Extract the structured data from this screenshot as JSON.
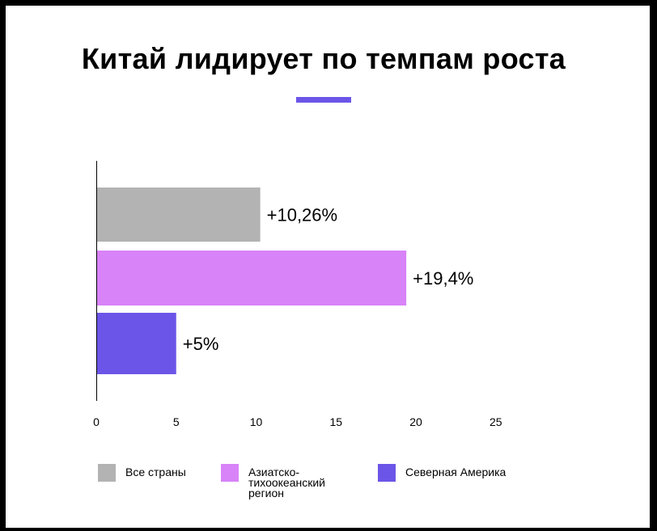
{
  "chart_data": {
    "type": "bar",
    "orientation": "horizontal",
    "title": "Китай лидирует по темпам роста",
    "categories": [
      "Все страны",
      "Азиатско-тихоокеанский регион",
      "Северная Америка"
    ],
    "values": [
      10.26,
      19.4,
      5
    ],
    "value_labels": [
      "+10,26%",
      "+19,4%",
      "+5%"
    ],
    "colors": [
      "#b3b3b3",
      "#d883f8",
      "#6b55e8"
    ],
    "xlim": [
      0,
      25
    ],
    "x_ticks": [
      "0",
      "5",
      "10",
      "15",
      "20",
      "25"
    ],
    "xlabel": "",
    "ylabel": "",
    "grid": false,
    "legend_position": "bottom",
    "legend": [
      {
        "lines": [
          "Все страны"
        ],
        "color": "#b3b3b3"
      },
      {
        "lines": [
          "Азиатско-",
          "тихоокеанский",
          "регион"
        ],
        "color": "#d883f8"
      },
      {
        "lines": [
          "Северная Америка"
        ],
        "color": "#6b55e8"
      }
    ]
  },
  "accent_color": "#6b55e8"
}
